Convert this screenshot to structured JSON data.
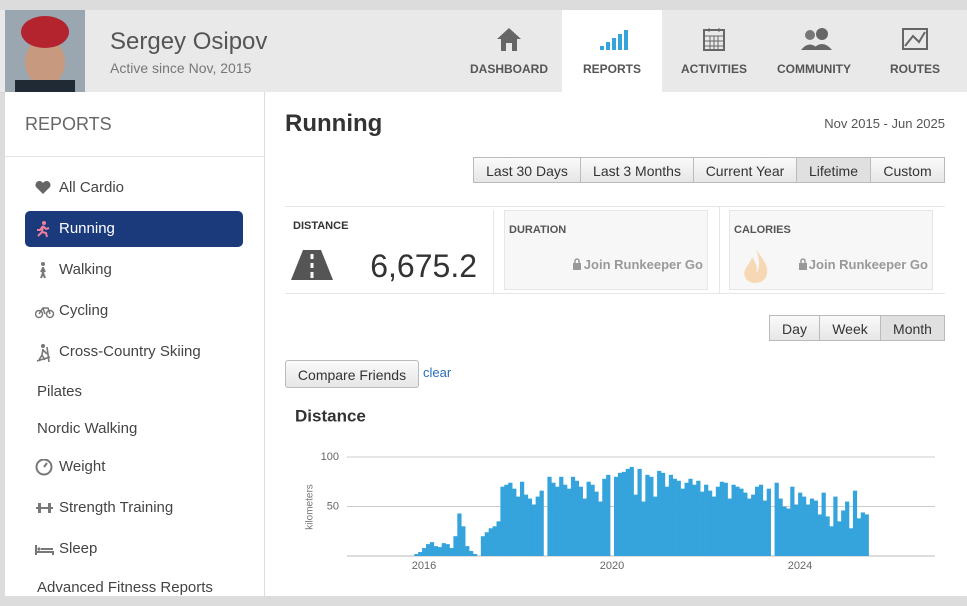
{
  "header": {
    "name": "Sergey Osipov",
    "since": "Active since Nov, 2015",
    "nav": [
      "DASHBOARD",
      "REPORTS",
      "ACTIVITIES",
      "COMMUNITY",
      "ROUTES"
    ]
  },
  "sidebar": {
    "title": "REPORTS",
    "items": [
      "All Cardio",
      "Running",
      "Walking",
      "Cycling",
      "Cross-Country Skiing",
      "Pilates",
      "Nordic Walking",
      "Weight",
      "Strength Training",
      "Sleep",
      "Advanced Fitness Reports"
    ]
  },
  "main": {
    "title": "Running",
    "range": "Nov 2015 - Jun 2025",
    "periods": [
      "Last 30 Days",
      "Last 3 Months",
      "Current Year",
      "Lifetime",
      "Custom"
    ],
    "stats": [
      {
        "label": "DISTANCE",
        "value": "6,675.2"
      },
      {
        "label": "DURATION",
        "note": "Join Runkeeper Go"
      },
      {
        "label": "CALORIES",
        "note": "Join Runkeeper Go"
      }
    ],
    "granularity": [
      "Day",
      "Week",
      "Month"
    ],
    "compare": "Compare Friends",
    "clear": "clear"
  },
  "chart_data": {
    "type": "bar",
    "title": "Distance",
    "y_label": "kilometers",
    "color": "#35a3dc",
    "ylim": [
      0,
      100
    ],
    "yticks": [
      50,
      100
    ],
    "grid": true,
    "categories": [
      null,
      null,
      "2016",
      null,
      null,
      null,
      null,
      null,
      null,
      null,
      null,
      null,
      null,
      null,
      null,
      null,
      null,
      null,
      null,
      null,
      null,
      null,
      null,
      null,
      null,
      null,
      null,
      null,
      null,
      null,
      null,
      null,
      null,
      null,
      null,
      null,
      null,
      null,
      null,
      null,
      null,
      null,
      null,
      null,
      null,
      null,
      null,
      null,
      null,
      null,
      "2020",
      null,
      null,
      null,
      null,
      null,
      null,
      null,
      null,
      null,
      null,
      null,
      null,
      null,
      null,
      null,
      null,
      null,
      null,
      null,
      null,
      null,
      null,
      null,
      null,
      null,
      null,
      null,
      null,
      null,
      null,
      null,
      null,
      null,
      null,
      null,
      null,
      null,
      null,
      null,
      null,
      null,
      null,
      null,
      null,
      null,
      null,
      null,
      "2024",
      null,
      null,
      null,
      null,
      null,
      null,
      null,
      null,
      null,
      null,
      null,
      null,
      null,
      null,
      null,
      null,
      null
    ],
    "values": [
      2,
      4,
      8,
      12,
      14,
      10,
      9,
      13,
      12,
      8,
      20,
      43,
      30,
      10,
      5,
      2,
      0,
      20,
      24,
      28,
      30,
      35,
      70,
      72,
      74,
      68,
      60,
      75,
      62,
      58,
      52,
      60,
      66,
      0,
      80,
      74,
      70,
      80,
      72,
      68,
      80,
      76,
      70,
      58,
      75,
      72,
      65,
      55,
      78,
      82,
      0,
      80,
      84,
      85,
      88,
      90,
      62,
      88,
      55,
      82,
      80,
      60,
      86,
      84,
      70,
      82,
      78,
      76,
      68,
      74,
      78,
      72,
      76,
      65,
      72,
      66,
      60,
      70,
      75,
      74,
      58,
      72,
      70,
      68,
      64,
      58,
      62,
      70,
      72,
      56,
      68,
      0,
      74,
      58,
      50,
      48,
      70,
      52,
      64,
      60,
      52,
      58,
      56,
      42,
      64,
      40,
      30,
      60,
      35,
      46,
      55,
      28,
      66,
      38,
      44,
      42
    ]
  }
}
